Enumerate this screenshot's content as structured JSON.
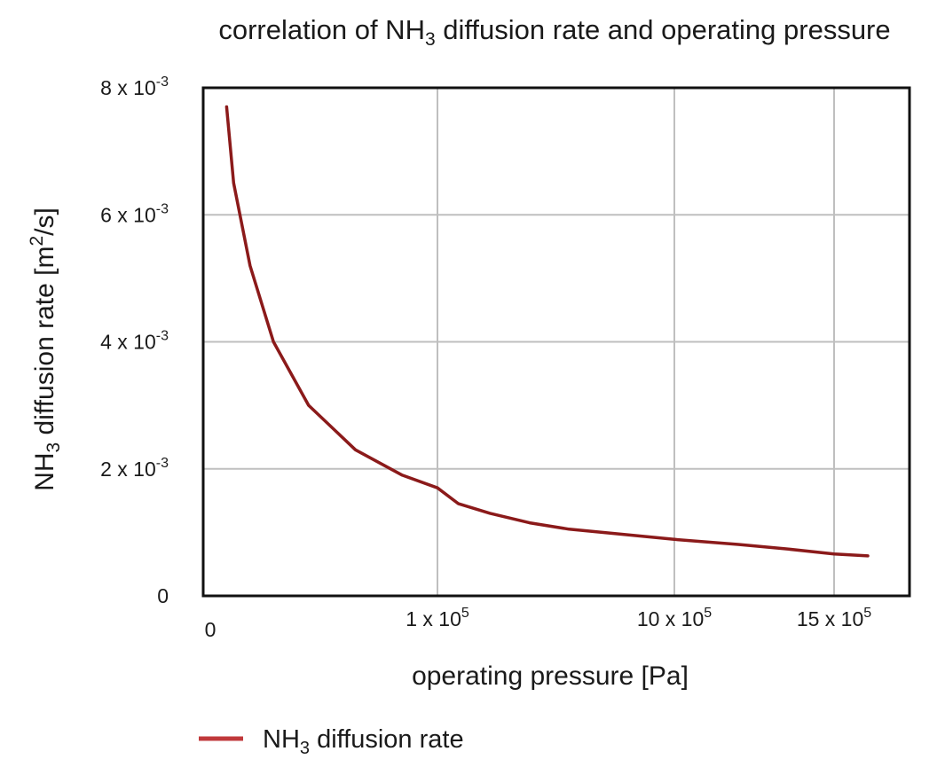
{
  "chart_data": {
    "type": "line",
    "title": {
      "pre": "correlation of NH",
      "sub": "3",
      "post": " diffusion rate and operating pressure"
    },
    "xlabel": "operating pressure [Pa]",
    "ylabel": {
      "pre": "NH",
      "sub": "3",
      "mid": " diffusion rate [m",
      "sup": "2",
      "post": "/s]"
    },
    "x_ticks": [
      {
        "value": 0,
        "base": "0",
        "exp": ""
      },
      {
        "value": 100000,
        "base": "1 x 10",
        "exp": "5"
      },
      {
        "value": 1000000,
        "base": "10 x 10",
        "exp": "5"
      },
      {
        "value": 1500000,
        "base": "15 x 10",
        "exp": "5"
      }
    ],
    "y_ticks": [
      {
        "value": 0,
        "base": "0",
        "exp": ""
      },
      {
        "value": 0.002,
        "base": "2 x 10",
        "exp": "-3"
      },
      {
        "value": 0.004,
        "base": "4 x 10",
        "exp": "-3"
      },
      {
        "value": 0.006,
        "base": "6 x 10",
        "exp": "-3"
      },
      {
        "value": 0.008,
        "base": "8 x 10",
        "exp": "-3"
      }
    ],
    "ylim": [
      0,
      0.008
    ],
    "grid": true,
    "legend_position": "bottom-left",
    "series": [
      {
        "label": {
          "pre": "NH",
          "sub": "3",
          "post": " diffusion rate"
        },
        "color": "#8b1a1a",
        "legend_color": "#c0393b",
        "points": [
          {
            "x": 10000,
            "y": 0.0077
          },
          {
            "x": 13000,
            "y": 0.0065
          },
          {
            "x": 20000,
            "y": 0.0052
          },
          {
            "x": 30000,
            "y": 0.004
          },
          {
            "x": 45000,
            "y": 0.003
          },
          {
            "x": 65000,
            "y": 0.0023
          },
          {
            "x": 85000,
            "y": 0.0019
          },
          {
            "x": 100000,
            "y": 0.0017
          },
          {
            "x": 180000,
            "y": 0.00145
          },
          {
            "x": 300000,
            "y": 0.0013
          },
          {
            "x": 450000,
            "y": 0.00115
          },
          {
            "x": 600000,
            "y": 0.00105
          },
          {
            "x": 800000,
            "y": 0.00097
          },
          {
            "x": 1000000,
            "y": 0.00089
          },
          {
            "x": 1200000,
            "y": 0.00081
          },
          {
            "x": 1350000,
            "y": 0.00074
          },
          {
            "x": 1500000,
            "y": 0.00066
          },
          {
            "x": 1600000,
            "y": 0.00063
          }
        ]
      }
    ]
  }
}
